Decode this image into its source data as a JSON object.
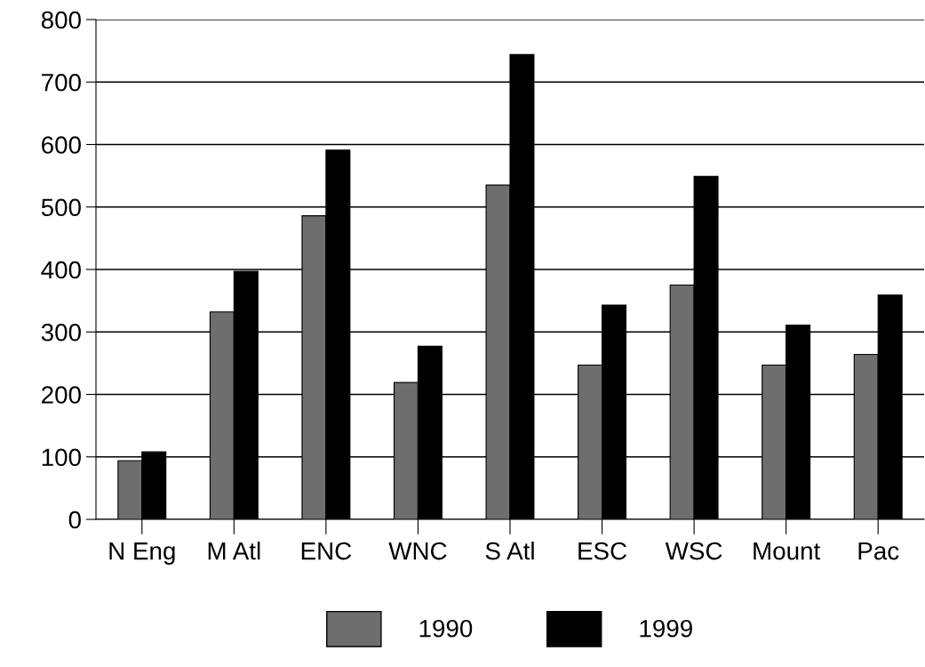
{
  "chart_data": {
    "type": "bar",
    "categories": [
      "N Eng",
      "M Atl",
      "ENC",
      "WNC",
      "S Atl",
      "ESC",
      "WSC",
      "Mount",
      "Pac"
    ],
    "series": [
      {
        "name": "1990",
        "color": "#6e6e6e",
        "values": [
          94,
          332,
          486,
          219,
          535,
          247,
          375,
          247,
          264
        ]
      },
      {
        "name": "1999",
        "color": "#000000",
        "values": [
          108,
          397,
          591,
          277,
          744,
          343,
          549,
          311,
          359
        ]
      }
    ],
    "ylim": [
      0,
      800
    ],
    "yticks": [
      0,
      100,
      200,
      300,
      400,
      500,
      600,
      700,
      800
    ],
    "grid": "y",
    "legend": "bottom"
  }
}
